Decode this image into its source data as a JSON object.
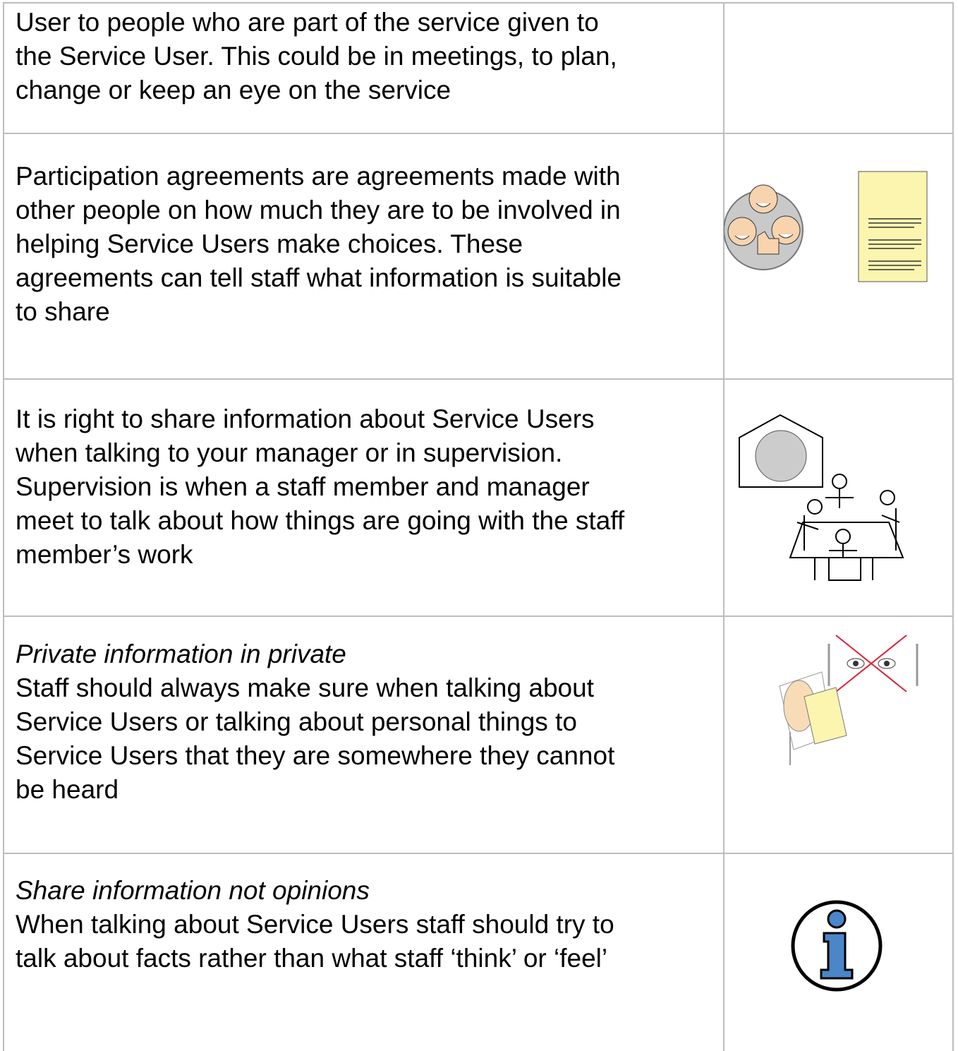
{
  "table": {
    "rows": [
      {
        "lines": [
          "User to people who are part of the service given to",
          "the Service User.  This could be in meetings, to plan,",
          "change or keep an eye on the service"
        ]
      },
      {
        "lines": [
          "Participation agreements are agreements made with",
          "other people on how much they are to be involved in",
          "helping Service Users make choices.  These",
          "agreements can tell staff what information is suitable",
          "to share"
        ]
      },
      {
        "lines": [
          "It is right to share information about Service Users",
          "when talking to your manager or in supervision.",
          "Supervision is when a staff member and manager",
          "meet to talk about how things are going with the staff",
          "member’s work"
        ]
      },
      {
        "heading": "Private information in private",
        "lines": [
          "Staff should always make sure when talking about",
          "Service Users or talking about personal things to",
          "Service Users that they are somewhere they cannot",
          "be heard"
        ]
      },
      {
        "heading": "Share information not opinions",
        "lines": [
          "When talking about Service Users staff should try to",
          "talk about facts rather than what staff ‘think’ or ‘feel’"
        ]
      }
    ]
  }
}
